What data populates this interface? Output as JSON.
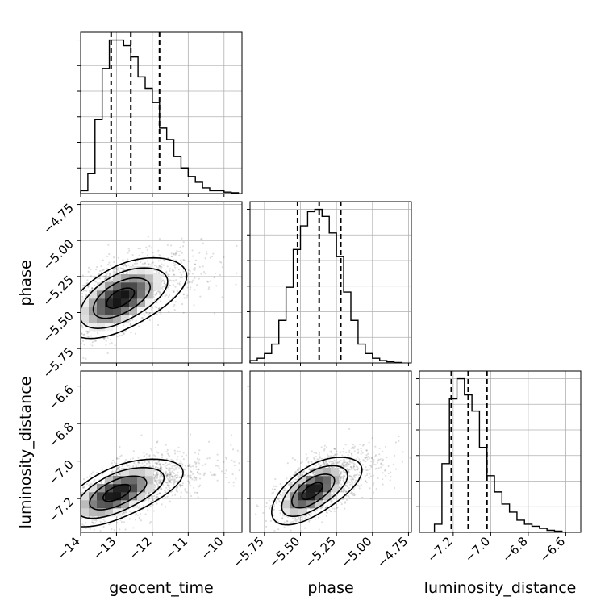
{
  "chart_data": {
    "type": "corner",
    "grid": true,
    "parameters": [
      "geocent_time",
      "phase",
      "luminosity_distance"
    ],
    "axis_labels": {
      "x": [
        "geocent_time",
        "phase",
        "luminosity_distance"
      ],
      "y": [
        "phase",
        "luminosity_distance"
      ]
    },
    "ranges": {
      "geocent_time": [
        -14.0,
        -9.5
      ],
      "phase": [
        -5.85,
        -4.73
      ],
      "luminosity_distance": [
        -7.38,
        -6.52
      ]
    },
    "tick_labels": {
      "geocent_time": [
        "−14",
        "−13",
        "−12",
        "−11",
        "−10"
      ],
      "phase": [
        "−5.75",
        "−5.50",
        "−5.25",
        "−5.00",
        "−4.75"
      ],
      "luminosity_distance": [
        "−7.2",
        "−7.0",
        "−6.8",
        "−6.6"
      ]
    },
    "tick_values": {
      "geocent_time": [
        -14,
        -13,
        -12,
        -11,
        -10
      ],
      "phase": [
        -5.75,
        -5.5,
        -5.25,
        -5.0,
        -4.75
      ],
      "luminosity_distance": [
        -7.2,
        -7.0,
        -6.8,
        -6.6
      ]
    },
    "quantiles": {
      "geocent_time": [
        -13.15,
        -12.6,
        -11.8
      ],
      "phase": [
        -5.52,
        -5.37,
        -5.22
      ],
      "luminosity_distance": [
        -7.21,
        -7.12,
        -7.02
      ]
    },
    "histograms": {
      "geocent_time": {
        "bin_edges": [
          -14.0,
          -13.8,
          -13.6,
          -13.4,
          -13.2,
          -13.0,
          -12.8,
          -12.6,
          -12.4,
          -12.2,
          -12.0,
          -11.8,
          -11.6,
          -11.4,
          -11.2,
          -11.0,
          -10.8,
          -10.6,
          -10.4,
          -10.2,
          -10.0,
          -9.8,
          -9.6
        ],
        "counts": [
          1,
          7,
          26,
          44,
          54,
          54,
          52,
          48,
          41,
          37,
          32,
          23,
          19,
          13,
          9,
          6,
          4,
          2,
          1,
          1,
          0.5,
          0.3
        ]
      },
      "phase": {
        "bin_edges": [
          -5.85,
          -5.8,
          -5.75,
          -5.7,
          -5.65,
          -5.6,
          -5.55,
          -5.5,
          -5.45,
          -5.4,
          -5.35,
          -5.3,
          -5.25,
          -5.2,
          -5.15,
          -5.1,
          -5.05,
          -5.0,
          -4.95,
          -4.9,
          -4.85,
          -4.8
        ],
        "counts": [
          1,
          2,
          4,
          8,
          18,
          32,
          48,
          58,
          64,
          65,
          62,
          55,
          45,
          30,
          18,
          8,
          4,
          2,
          1,
          0.5,
          0.2
        ]
      },
      "luminosity_distance": {
        "bin_edges": [
          -7.3,
          -7.26,
          -7.22,
          -7.18,
          -7.14,
          -7.1,
          -7.06,
          -7.02,
          -6.98,
          -6.94,
          -6.9,
          -6.86,
          -6.82,
          -6.78,
          -6.74,
          -6.7,
          -6.66,
          -6.62
        ],
        "counts": [
          2,
          17,
          33,
          38,
          34,
          30,
          21,
          14,
          10,
          7,
          5,
          3,
          2,
          1.5,
          1,
          0.5,
          0.3
        ]
      }
    },
    "pairs": [
      {
        "x": "geocent_time",
        "y": "phase",
        "mean": [
          -12.9,
          -5.38
        ],
        "sd": [
          0.75,
          0.14
        ],
        "corr": 0.55,
        "peak": [
          -12.9,
          -5.4
        ]
      },
      {
        "x": "geocent_time",
        "y": "luminosity_distance",
        "mean": [
          -12.6,
          -7.14
        ],
        "sd": [
          0.75,
          0.09
        ],
        "corr": 0.6,
        "peak": [
          -13.0,
          -7.17
        ]
      },
      {
        "x": "phase",
        "y": "luminosity_distance",
        "mean": [
          -5.38,
          -7.13
        ],
        "sd": [
          0.14,
          0.09
        ],
        "corr": 0.62,
        "peak": [
          -5.42,
          -7.16
        ]
      }
    ],
    "contour_levels_sigma": [
      0.5,
      1.0,
      1.5,
      2.0
    ]
  }
}
